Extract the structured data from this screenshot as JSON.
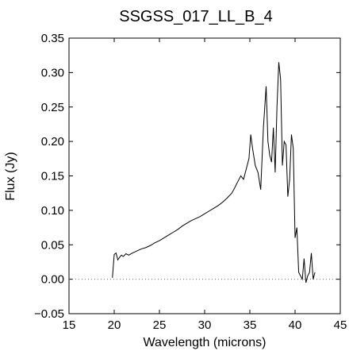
{
  "chart_data": {
    "type": "line",
    "title": "SSGSS_017_LL_B_4",
    "xlabel": "Wavelength (microns)",
    "ylabel": "Flux (Jy)",
    "xlim": [
      15,
      45
    ],
    "ylim": [
      -0.05,
      0.35
    ],
    "xticks": [
      15,
      20,
      25,
      30,
      35,
      40,
      45
    ],
    "yticks": [
      -0.05,
      0.0,
      0.05,
      0.1,
      0.15,
      0.2,
      0.25,
      0.3,
      0.35
    ],
    "xtick_labels": [
      "15",
      "20",
      "25",
      "30",
      "35",
      "40",
      "45"
    ],
    "ytick_labels": [
      "−0.05",
      "0.00",
      "0.05",
      "0.10",
      "0.15",
      "0.20",
      "0.25",
      "0.30",
      "0.35"
    ],
    "grid": false,
    "zero_line": "dotted",
    "series": [
      {
        "x": [
          19.8,
          20.0,
          20.2,
          20.4,
          20.6,
          20.8,
          21.0,
          21.3,
          21.6,
          22.0,
          22.5,
          23.0,
          23.5,
          24.0,
          24.5,
          25.0,
          25.5,
          26.0,
          26.5,
          27.0,
          27.5,
          28.0,
          28.5,
          29.0,
          29.5,
          30.0,
          30.5,
          31.0,
          31.5,
          32.0,
          32.5,
          33.0,
          33.3,
          33.6,
          34.0,
          34.3,
          34.6,
          34.9,
          35.1,
          35.3,
          35.6,
          35.9,
          36.2,
          36.5,
          36.8,
          37.0,
          37.2,
          37.4,
          37.6,
          37.8,
          38.0,
          38.2,
          38.4,
          38.6,
          38.8,
          39.0,
          39.2,
          39.4,
          39.6,
          39.8,
          40.0,
          40.2,
          40.4,
          40.6,
          40.8,
          41.0,
          41.2,
          41.4,
          41.6,
          41.8,
          42.0,
          42.2
        ],
        "y": [
          0.002,
          0.036,
          0.038,
          0.028,
          0.032,
          0.035,
          0.033,
          0.037,
          0.035,
          0.038,
          0.041,
          0.044,
          0.046,
          0.049,
          0.053,
          0.056,
          0.06,
          0.064,
          0.068,
          0.072,
          0.077,
          0.081,
          0.085,
          0.088,
          0.091,
          0.095,
          0.099,
          0.103,
          0.107,
          0.112,
          0.118,
          0.125,
          0.132,
          0.14,
          0.15,
          0.145,
          0.16,
          0.175,
          0.21,
          0.19,
          0.165,
          0.155,
          0.13,
          0.22,
          0.28,
          0.2,
          0.18,
          0.17,
          0.22,
          0.155,
          0.25,
          0.315,
          0.29,
          0.165,
          0.2,
          0.195,
          0.12,
          0.145,
          0.21,
          0.19,
          0.06,
          0.075,
          0.01,
          0.005,
          0.0,
          0.03,
          -0.005,
          0.005,
          0.01,
          0.038,
          0.0,
          0.01
        ]
      }
    ]
  }
}
